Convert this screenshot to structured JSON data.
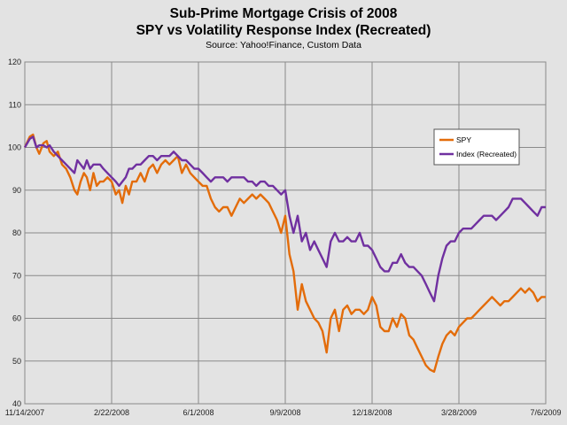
{
  "chart_data": {
    "type": "line",
    "title": "Sub-Prime Mortgage Crisis of 2008",
    "subtitle": "SPY vs Volatility Response Index (Recreated)",
    "source": "Source: Yahoo!Finance, Custom Data",
    "xlabel": "",
    "ylabel": "",
    "ylim": [
      40,
      120
    ],
    "yticks": [
      40,
      50,
      60,
      70,
      80,
      90,
      100,
      110,
      120
    ],
    "xtick_labels": [
      "11/14/2007",
      "2/22/2008",
      "6/1/2008",
      "9/9/2008",
      "12/18/2008",
      "3/28/2009",
      "7/6/2009"
    ],
    "grid": true,
    "legend_position": "right",
    "series": [
      {
        "name": "SPY",
        "color": "#e36c0a",
        "points": [
          [
            0.0,
            100
          ],
          [
            1.2,
            102.5
          ],
          [
            2.0,
            103
          ],
          [
            2.8,
            100
          ],
          [
            3.5,
            98.5
          ],
          [
            4.5,
            101
          ],
          [
            5.3,
            101.5
          ],
          [
            6.0,
            99
          ],
          [
            7.0,
            98
          ],
          [
            8.0,
            99
          ],
          [
            9.0,
            96
          ],
          [
            10.0,
            95
          ],
          [
            11.0,
            93
          ],
          [
            12.0,
            90
          ],
          [
            12.7,
            89
          ],
          [
            13.5,
            92
          ],
          [
            14.3,
            94
          ],
          [
            15.0,
            93
          ],
          [
            15.8,
            90
          ],
          [
            16.6,
            94
          ],
          [
            17.4,
            91
          ],
          [
            18.2,
            92
          ],
          [
            19.0,
            92
          ],
          [
            20.0,
            93
          ],
          [
            21.0,
            92
          ],
          [
            22.0,
            89
          ],
          [
            22.8,
            90
          ],
          [
            23.6,
            87
          ],
          [
            24.4,
            91
          ],
          [
            25.2,
            89
          ],
          [
            26.0,
            92
          ],
          [
            27.0,
            92
          ],
          [
            28.0,
            94
          ],
          [
            29.0,
            92
          ],
          [
            30.0,
            95
          ],
          [
            31.0,
            96
          ],
          [
            32.0,
            94
          ],
          [
            33.0,
            96
          ],
          [
            34.0,
            97
          ],
          [
            35.0,
            96
          ],
          [
            36.0,
            97
          ],
          [
            37.0,
            98
          ],
          [
            38.0,
            94
          ],
          [
            39.0,
            96
          ],
          [
            40.0,
            94
          ],
          [
            41.0,
            93
          ],
          [
            42.0,
            92
          ],
          [
            43.0,
            91
          ],
          [
            44.0,
            91
          ],
          [
            45.0,
            88
          ],
          [
            46.0,
            86
          ],
          [
            47.0,
            85
          ],
          [
            48.0,
            86
          ],
          [
            49.0,
            86
          ],
          [
            50.0,
            84
          ],
          [
            51.0,
            86
          ],
          [
            52.0,
            88
          ],
          [
            53.0,
            87
          ],
          [
            54.0,
            88
          ],
          [
            55.0,
            89
          ],
          [
            56.0,
            88
          ],
          [
            57.0,
            89
          ],
          [
            58.0,
            88
          ],
          [
            59.0,
            87
          ],
          [
            60.0,
            85
          ],
          [
            61.0,
            83
          ],
          [
            62.0,
            80
          ],
          [
            63.0,
            84
          ],
          [
            64.0,
            75
          ],
          [
            65.0,
            71
          ],
          [
            66.0,
            62
          ],
          [
            67.0,
            68
          ],
          [
            68.0,
            64
          ],
          [
            69.0,
            62
          ],
          [
            70.0,
            60
          ],
          [
            71.0,
            59
          ],
          [
            72.0,
            57
          ],
          [
            73.0,
            52
          ],
          [
            74.0,
            60
          ],
          [
            75.0,
            62
          ],
          [
            76.0,
            57
          ],
          [
            77.0,
            62
          ],
          [
            78.0,
            63
          ],
          [
            79.0,
            61
          ],
          [
            80.0,
            62
          ],
          [
            81.0,
            62
          ],
          [
            82.0,
            61
          ],
          [
            83.0,
            62
          ],
          [
            84.0,
            65
          ],
          [
            85.0,
            63
          ],
          [
            86.0,
            58
          ],
          [
            87.0,
            57
          ],
          [
            88.0,
            57
          ],
          [
            89.0,
            60
          ],
          [
            90.0,
            58
          ],
          [
            91.0,
            61
          ],
          [
            92.0,
            60
          ],
          [
            93.0,
            56
          ],
          [
            94.0,
            55
          ],
          [
            95.0,
            53
          ],
          [
            96.0,
            51
          ],
          [
            97.0,
            49
          ],
          [
            98.0,
            48
          ],
          [
            99.0,
            47.5
          ],
          [
            100.0,
            51
          ],
          [
            101.0,
            54
          ],
          [
            102.0,
            56
          ],
          [
            103.0,
            57
          ],
          [
            104.0,
            56
          ],
          [
            105.0,
            58
          ],
          [
            106.0,
            59
          ],
          [
            107.0,
            60
          ],
          [
            108.0,
            60
          ],
          [
            109.0,
            61
          ],
          [
            110.0,
            62
          ],
          [
            111.0,
            63
          ],
          [
            112.0,
            64
          ],
          [
            113.0,
            65
          ],
          [
            114.0,
            64
          ],
          [
            115.0,
            63
          ],
          [
            116.0,
            64
          ],
          [
            117.0,
            64
          ],
          [
            118.0,
            65
          ],
          [
            119.0,
            66
          ],
          [
            120.0,
            67
          ],
          [
            121.0,
            66
          ],
          [
            122.0,
            67
          ],
          [
            123.0,
            66
          ],
          [
            124.0,
            64
          ],
          [
            125.0,
            65
          ],
          [
            126.0,
            65
          ]
        ]
      },
      {
        "name": "Index (Recreated)",
        "color": "#7030a0",
        "points": [
          [
            0.0,
            100
          ],
          [
            1.2,
            102
          ],
          [
            2.0,
            102.5
          ],
          [
            2.8,
            100
          ],
          [
            3.5,
            100.5
          ],
          [
            4.5,
            100.5
          ],
          [
            5.3,
            100
          ],
          [
            6.0,
            100.5
          ],
          [
            7.0,
            99
          ],
          [
            8.0,
            98
          ],
          [
            9.0,
            97
          ],
          [
            10.0,
            96
          ],
          [
            11.0,
            95
          ],
          [
            12.0,
            94
          ],
          [
            12.7,
            97
          ],
          [
            13.5,
            96
          ],
          [
            14.3,
            95
          ],
          [
            15.0,
            97
          ],
          [
            15.8,
            95
          ],
          [
            16.6,
            96
          ],
          [
            17.4,
            96
          ],
          [
            18.2,
            96
          ],
          [
            19.0,
            95
          ],
          [
            20.0,
            94
          ],
          [
            21.0,
            93
          ],
          [
            22.0,
            92
          ],
          [
            22.8,
            91
          ],
          [
            23.6,
            92
          ],
          [
            24.4,
            93
          ],
          [
            25.2,
            95
          ],
          [
            26.0,
            95
          ],
          [
            27.0,
            96
          ],
          [
            28.0,
            96
          ],
          [
            29.0,
            97
          ],
          [
            30.0,
            98
          ],
          [
            31.0,
            98
          ],
          [
            32.0,
            97
          ],
          [
            33.0,
            98
          ],
          [
            34.0,
            98
          ],
          [
            35.0,
            98
          ],
          [
            36.0,
            99
          ],
          [
            37.0,
            98
          ],
          [
            38.0,
            97
          ],
          [
            39.0,
            97
          ],
          [
            40.0,
            96
          ],
          [
            41.0,
            95
          ],
          [
            42.0,
            95
          ],
          [
            43.0,
            94
          ],
          [
            44.0,
            93
          ],
          [
            45.0,
            92
          ],
          [
            46.0,
            93
          ],
          [
            47.0,
            93
          ],
          [
            48.0,
            93
          ],
          [
            49.0,
            92
          ],
          [
            50.0,
            93
          ],
          [
            51.0,
            93
          ],
          [
            52.0,
            93
          ],
          [
            53.0,
            93
          ],
          [
            54.0,
            92
          ],
          [
            55.0,
            92
          ],
          [
            56.0,
            91
          ],
          [
            57.0,
            92
          ],
          [
            58.0,
            92
          ],
          [
            59.0,
            91
          ],
          [
            60.0,
            91
          ],
          [
            61.0,
            90
          ],
          [
            62.0,
            89
          ],
          [
            63.0,
            90
          ],
          [
            64.0,
            84
          ],
          [
            65.0,
            80
          ],
          [
            66.0,
            84
          ],
          [
            67.0,
            78
          ],
          [
            68.0,
            80
          ],
          [
            69.0,
            76
          ],
          [
            70.0,
            78
          ],
          [
            71.0,
            76
          ],
          [
            72.0,
            74
          ],
          [
            73.0,
            72
          ],
          [
            74.0,
            78
          ],
          [
            75.0,
            80
          ],
          [
            76.0,
            78
          ],
          [
            77.0,
            78
          ],
          [
            78.0,
            79
          ],
          [
            79.0,
            78
          ],
          [
            80.0,
            78
          ],
          [
            81.0,
            80
          ],
          [
            82.0,
            77
          ],
          [
            83.0,
            77
          ],
          [
            84.0,
            76
          ],
          [
            85.0,
            74
          ],
          [
            86.0,
            72
          ],
          [
            87.0,
            71
          ],
          [
            88.0,
            71
          ],
          [
            89.0,
            73
          ],
          [
            90.0,
            73
          ],
          [
            91.0,
            75
          ],
          [
            92.0,
            73
          ],
          [
            93.0,
            72
          ],
          [
            94.0,
            72
          ],
          [
            95.0,
            71
          ],
          [
            96.0,
            70
          ],
          [
            97.0,
            68
          ],
          [
            98.0,
            66
          ],
          [
            99.0,
            64
          ],
          [
            100.0,
            70
          ],
          [
            101.0,
            74
          ],
          [
            102.0,
            77
          ],
          [
            103.0,
            78
          ],
          [
            104.0,
            78
          ],
          [
            105.0,
            80
          ],
          [
            106.0,
            81
          ],
          [
            107.0,
            81
          ],
          [
            108.0,
            81
          ],
          [
            109.0,
            82
          ],
          [
            110.0,
            83
          ],
          [
            111.0,
            84
          ],
          [
            112.0,
            84
          ],
          [
            113.0,
            84
          ],
          [
            114.0,
            83
          ],
          [
            115.0,
            84
          ],
          [
            116.0,
            85
          ],
          [
            117.0,
            86
          ],
          [
            118.0,
            88
          ],
          [
            119.0,
            88
          ],
          [
            120.0,
            88
          ],
          [
            121.0,
            87
          ],
          [
            122.0,
            86
          ],
          [
            123.0,
            85
          ],
          [
            124.0,
            84
          ],
          [
            125.0,
            86
          ],
          [
            126.0,
            86
          ]
        ]
      }
    ]
  }
}
